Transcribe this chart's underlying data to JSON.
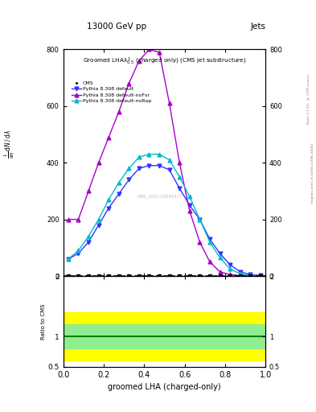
{
  "title_top": "13000 GeV pp",
  "title_right": "Jets",
  "plot_title": "Groomed LHA$\\lambda^{1}_{0.5}$ (charged only) (CMS jet substructure)",
  "xlabel": "groomed LHA (charged-only)",
  "ylabel_main": "$\\frac{1}{\\mathrm{d}N}\\,/\\,\\mathrm{d}\\lambda$",
  "ylabel_ratio": "Ratio to CMS",
  "right_label_top": "Rivet 3.1.10, $\\geq$ 2.7M events",
  "right_label_bottom": "mcplots.cern.ch [arXiv:1306.3436]",
  "watermark": "CMS_2021-19201577",
  "x_bins": [
    0.0,
    0.05,
    0.1,
    0.15,
    0.2,
    0.25,
    0.3,
    0.35,
    0.4,
    0.45,
    0.5,
    0.55,
    0.6,
    0.65,
    0.7,
    0.75,
    0.8,
    0.85,
    0.9,
    0.95,
    1.0
  ],
  "cms_y": [
    0,
    0,
    0,
    0,
    0,
    0,
    0,
    0,
    0,
    0,
    0,
    0,
    0,
    0,
    0,
    0,
    0,
    0,
    0,
    0
  ],
  "pythia_default_y": [
    60,
    80,
    120,
    180,
    240,
    290,
    340,
    380,
    390,
    390,
    375,
    310,
    250,
    200,
    130,
    80,
    40,
    15,
    5,
    2
  ],
  "pythia_noFsr_y": [
    200,
    200,
    300,
    400,
    490,
    580,
    680,
    760,
    800,
    790,
    610,
    400,
    230,
    120,
    50,
    15,
    5,
    2,
    1,
    0
  ],
  "pythia_noRap_y": [
    60,
    90,
    140,
    200,
    270,
    330,
    380,
    420,
    430,
    430,
    410,
    350,
    280,
    200,
    120,
    65,
    25,
    8,
    2,
    1
  ],
  "color_cms": "#000000",
  "color_default": "#3333ff",
  "color_noFsr": "#aa00cc",
  "color_noRap": "#00bbcc",
  "ylim_main": [
    0,
    800
  ],
  "ylim_ratio": [
    0.5,
    2.0
  ],
  "ratio_green_lo": 0.8,
  "ratio_green_hi": 1.2,
  "ratio_yellow_lo": 0.6,
  "ratio_yellow_hi": 1.4,
  "yticks_main": [
    0,
    200,
    400,
    600,
    800
  ],
  "yticks_ratio": [
    0.5,
    1.0,
    2.0
  ]
}
